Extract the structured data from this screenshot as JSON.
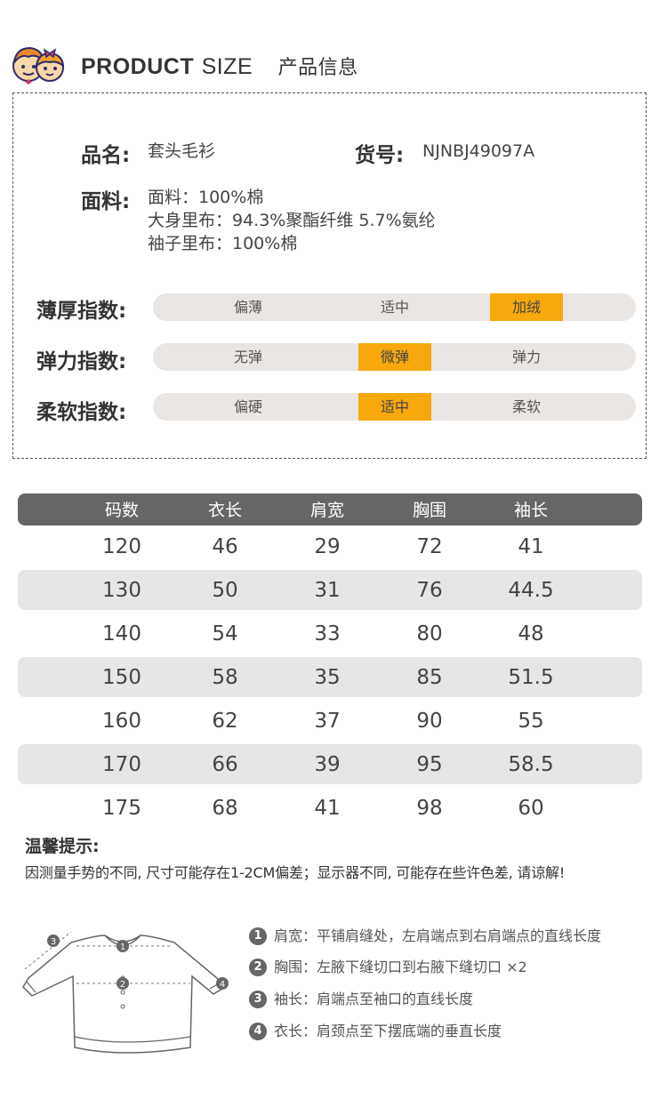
{
  "header": {
    "title_bold": "PRODUCT",
    "title_light": "SIZE",
    "title_cn": "产品信息"
  },
  "info": {
    "name_label": "品名:",
    "name_value": "套头毛衫",
    "code_label": "货号:",
    "code_value": "NJNBJ49097A",
    "fabric_label": "面料:",
    "fabric_lines": [
      "面料：100%棉",
      "大身里布：94.3%聚酯纤维 5.7%氨纶",
      "袖子里布：100%棉"
    ]
  },
  "indices": [
    {
      "label": "薄厚指数:",
      "options": [
        "偏薄",
        "适中",
        "加绒"
      ],
      "selected": 2
    },
    {
      "label": "弹力指数:",
      "options": [
        "无弹",
        "微弹",
        "弹力"
      ],
      "selected": 1
    },
    {
      "label": "柔软指数:",
      "options": [
        "偏硬",
        "适中",
        "柔软"
      ],
      "selected": 1
    }
  ],
  "size_table": {
    "headers": [
      "码数",
      "衣长",
      "肩宽",
      "胸围",
      "袖长"
    ],
    "rows": [
      [
        "120",
        "46",
        "29",
        "72",
        "41"
      ],
      [
        "130",
        "50",
        "31",
        "76",
        "44.5"
      ],
      [
        "140",
        "54",
        "33",
        "80",
        "48"
      ],
      [
        "150",
        "58",
        "35",
        "85",
        "51.5"
      ],
      [
        "160",
        "62",
        "37",
        "90",
        "55"
      ],
      [
        "170",
        "66",
        "39",
        "95",
        "58.5"
      ],
      [
        "175",
        "68",
        "41",
        "98",
        "60"
      ]
    ]
  },
  "tips": {
    "title": "温馨提示:",
    "text": "因测量手势的不同, 尺寸可能存在1-2CM偏差；显示器不同, 可能存在些许色差, 请谅解!"
  },
  "legend": [
    {
      "num": "1",
      "text": "肩宽：平铺肩缝处，左肩端点到右肩端点的直线长度"
    },
    {
      "num": "2",
      "text": "胸围：左腋下缝切口到右腋下缝切口 ×2"
    },
    {
      "num": "3",
      "text": "袖长：肩端点至袖口的直线长度"
    },
    {
      "num": "4",
      "text": "衣长：肩颈点至下摆底端的垂直长度"
    }
  ],
  "diagram_labels": [
    "1",
    "2",
    "3",
    "4"
  ],
  "colors": {
    "accent": "#f7a80d",
    "bar_bg": "#eae6e3",
    "table_header": "#666666",
    "row_alt": "#e6e6e6"
  }
}
